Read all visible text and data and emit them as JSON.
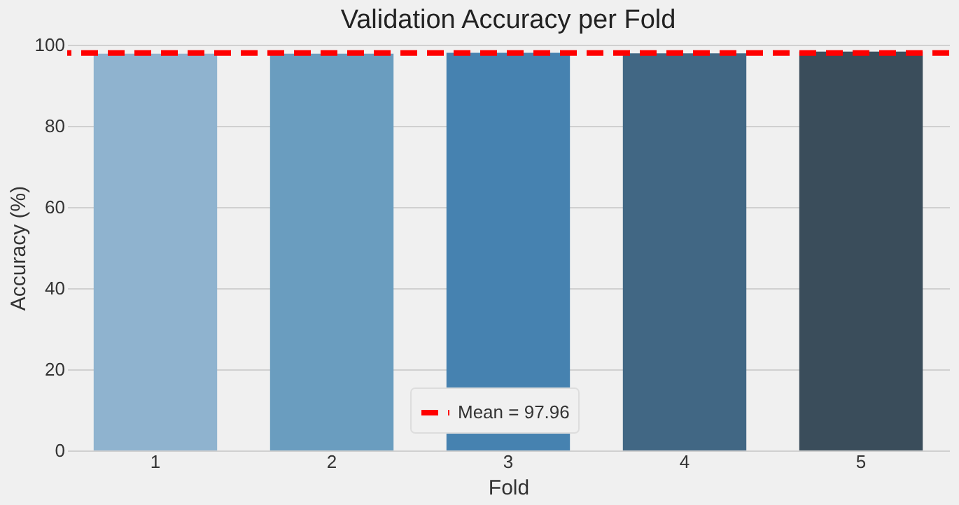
{
  "chart_data": {
    "type": "bar",
    "title": "Validation Accuracy per Fold",
    "xlabel": "Fold",
    "ylabel": "Accuracy (%)",
    "categories": [
      "1",
      "2",
      "3",
      "4",
      "5"
    ],
    "values": [
      97.8,
      97.8,
      98.0,
      97.9,
      98.3
    ],
    "colors": [
      "#8fb3cf",
      "#6a9dbf",
      "#4682b0",
      "#416784",
      "#3a4d5b"
    ],
    "ylim": [
      0,
      100
    ],
    "yticks": [
      0,
      20,
      40,
      60,
      80,
      100
    ],
    "grid": "y",
    "legend": "bottom",
    "ref_lines": [
      {
        "axis": "y",
        "value": 97.96,
        "label": "Mean = 97.96",
        "color": "#ff0000",
        "line_style": "dashed"
      }
    ]
  }
}
